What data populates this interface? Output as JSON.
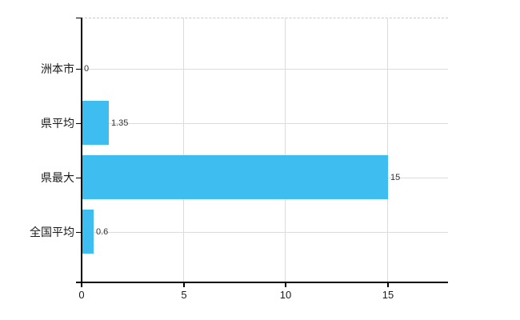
{
  "chart_data": {
    "type": "bar",
    "orientation": "horizontal",
    "title": "",
    "xlabel": "",
    "ylabel": "",
    "categories": [
      "洲本市",
      "県平均",
      "県最大",
      "全国平均"
    ],
    "values": [
      0,
      1.35,
      15,
      0.6
    ],
    "value_labels": [
      "0",
      "1.35",
      "15",
      "0.6"
    ],
    "xticks": [
      0,
      5,
      10,
      15
    ],
    "xtick_labels": [
      "0",
      "5",
      "10",
      "15"
    ],
    "xlim": [
      0,
      18
    ],
    "grid": true,
    "legend": "none"
  },
  "colors": {
    "bar": "#3ebdf0",
    "axis": "#000000",
    "gridline": "#dcdcdc",
    "top_border_dashed": "#c9c9c9",
    "category_text": "#1a1a1a",
    "value_text": "#333333",
    "tick_text": "#1a1a1a",
    "background": "#ffffff"
  }
}
